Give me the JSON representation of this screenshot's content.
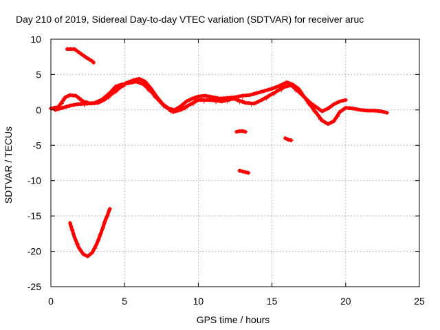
{
  "chart_data": {
    "type": "scatter",
    "title": "Day 210 of 2019, Sidereal Day-to-day VTEC variation (SDTVAR) for receiver aruc",
    "xlabel": "GPS time / hours",
    "ylabel": "SDTVAR / TECUs",
    "xlim": [
      0,
      25
    ],
    "ylim": [
      -25,
      10
    ],
    "grid": true,
    "xticks": [
      0,
      5,
      10,
      15,
      20,
      25
    ],
    "yticks": [
      -25,
      -20,
      -15,
      -10,
      -5,
      0,
      5,
      10
    ],
    "marker": "plus",
    "color": "#ff0000",
    "series": [
      {
        "name": "top-short-arc",
        "x": [
          1.1,
          1.6,
          2.0,
          2.4,
          2.8,
          2.9
        ],
        "y": [
          8.6,
          8.6,
          8.0,
          7.4,
          6.9,
          6.7
        ]
      },
      {
        "name": "deep-arc",
        "x": [
          1.3,
          1.6,
          1.9,
          2.2,
          2.5,
          2.8,
          3.1,
          3.4,
          3.7,
          4.0
        ],
        "y": [
          -16.0,
          -18.0,
          -19.5,
          -20.4,
          -20.7,
          -20.2,
          -19.0,
          -17.4,
          -15.6,
          -14.0
        ]
      },
      {
        "name": "main-track-a",
        "x": [
          0.0,
          0.5,
          1.0,
          1.3,
          1.7,
          2.2,
          2.7,
          3.2,
          3.6,
          4.1,
          4.6,
          5.1,
          5.6,
          6.0,
          6.4,
          6.8,
          7.2,
          7.6,
          8.0,
          8.4,
          8.8,
          9.2,
          9.6,
          10.0,
          10.5,
          11.0,
          11.5,
          12.0,
          12.5,
          13.0,
          13.5,
          14.0,
          14.5,
          15.0,
          15.5,
          16.0,
          16.4,
          16.8,
          17.2,
          17.6,
          18.0,
          18.4,
          18.8,
          19.2,
          19.6,
          20.0,
          20.5,
          21.0,
          21.5,
          22.0,
          22.4,
          22.8
        ],
        "y": [
          0.2,
          0.4,
          1.8,
          2.1,
          2.0,
          1.2,
          0.9,
          1.0,
          1.4,
          2.2,
          3.0,
          3.8,
          4.2,
          4.4,
          4.0,
          3.0,
          1.8,
          0.8,
          0.2,
          0.0,
          0.5,
          1.2,
          1.6,
          1.9,
          2.0,
          1.8,
          1.6,
          1.7,
          1.8,
          2.0,
          2.1,
          2.4,
          2.7,
          3.0,
          3.4,
          3.9,
          3.6,
          3.0,
          1.8,
          0.7,
          -0.4,
          -1.5,
          -2.0,
          -1.6,
          -0.3,
          0.3,
          0.2,
          0.0,
          -0.1,
          -0.1,
          -0.2,
          -0.4
        ]
      },
      {
        "name": "main-track-b",
        "x": [
          0.3,
          0.8,
          1.3,
          1.8,
          2.5,
          3.0,
          3.5,
          4.0,
          4.4,
          4.8,
          5.3,
          5.8,
          6.3,
          6.8,
          7.3,
          7.8,
          8.3,
          8.8,
          9.3,
          10.0,
          10.8,
          11.6,
          12.4,
          13.2,
          13.8,
          14.3,
          14.8,
          15.3,
          15.8,
          16.3,
          16.8,
          17.2,
          17.6,
          18.0,
          18.4,
          18.8,
          19.2,
          19.6,
          20.0
        ],
        "y": [
          0.0,
          0.3,
          0.6,
          0.8,
          0.9,
          1.0,
          1.5,
          2.4,
          3.3,
          3.6,
          3.8,
          4.0,
          3.6,
          2.6,
          1.4,
          0.4,
          -0.3,
          0.0,
          0.6,
          1.4,
          1.4,
          1.2,
          1.6,
          1.0,
          0.9,
          1.4,
          2.0,
          2.6,
          3.2,
          3.5,
          2.6,
          1.8,
          1.0,
          0.4,
          -0.2,
          0.2,
          0.8,
          1.2,
          1.4
        ]
      },
      {
        "name": "isolated-cluster-1",
        "x": [
          12.6,
          12.8,
          13.0,
          13.2
        ],
        "y": [
          -3.1,
          -3.0,
          -3.0,
          -3.1
        ]
      },
      {
        "name": "isolated-cluster-2",
        "x": [
          12.8,
          13.0,
          13.2,
          13.4
        ],
        "y": [
          -8.6,
          -8.7,
          -8.8,
          -8.9
        ]
      },
      {
        "name": "isolated-cluster-3",
        "x": [
          15.9,
          16.1,
          16.3
        ],
        "y": [
          -4.0,
          -4.2,
          -4.3
        ]
      }
    ]
  }
}
